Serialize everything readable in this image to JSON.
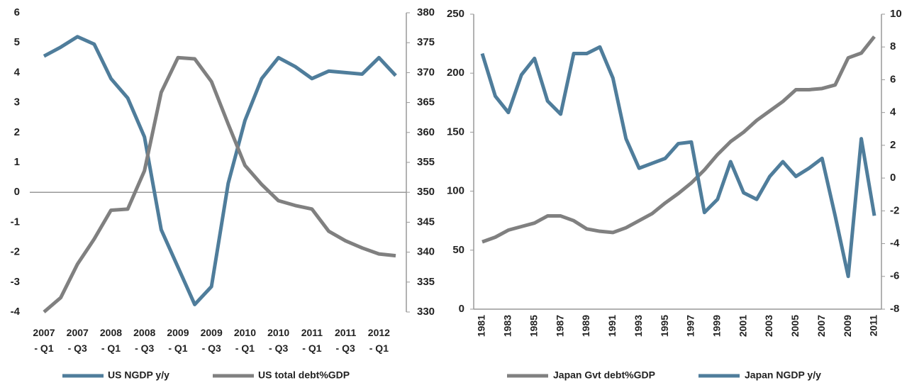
{
  "chart_data": [
    {
      "type": "line",
      "categories": [
        "2007 - Q1",
        null,
        "2007 - Q3",
        null,
        "2008 - Q1",
        null,
        "2008 - Q3",
        null,
        "2009 - Q1",
        null,
        "2009 - Q3",
        null,
        "2010 - Q1",
        null,
        "2010 - Q3",
        null,
        "2011 - Q1",
        null,
        "2011 - Q3",
        null,
        "2012 - Q1",
        null
      ],
      "series": [
        {
          "name": "US NGDP y/y",
          "color": "#4f7d9b",
          "axis": "y",
          "values": [
            4.55,
            4.85,
            5.2,
            4.95,
            3.8,
            3.15,
            1.85,
            -1.25,
            -2.5,
            -3.75,
            -3.15,
            0.3,
            2.4,
            3.8,
            4.5,
            4.2,
            3.8,
            4.05,
            4.0,
            3.95,
            4.5,
            3.9
          ]
        },
        {
          "name": "US total debt%GDP",
          "color": "#808080",
          "axis": "y2",
          "values": [
            330,
            332.4,
            338,
            342.2,
            347,
            347.2,
            353.6,
            366.7,
            372.5,
            372.3,
            368.5,
            361.4,
            354.5,
            351.3,
            348.6,
            347.8,
            347.2,
            343.5,
            341.9,
            340.7,
            339.7,
            339.4
          ]
        }
      ],
      "ylim": [
        -4,
        6
      ],
      "yticks": [
        -4,
        -3,
        -2,
        -1,
        0,
        1,
        2,
        3,
        4,
        5,
        6
      ],
      "y2lim": [
        330,
        380
      ],
      "y2ticks": [
        330,
        335,
        340,
        345,
        350,
        355,
        360,
        365,
        370,
        375,
        380
      ]
    },
    {
      "type": "line",
      "categories": [
        "1981",
        null,
        "1983",
        null,
        "1985",
        null,
        "1987",
        null,
        "1989",
        null,
        "1991",
        null,
        "1993",
        null,
        "1995",
        null,
        "1997",
        null,
        "1999",
        null,
        "2001",
        null,
        "2003",
        null,
        "2005",
        null,
        "2007",
        null,
        "2009",
        null,
        "2011"
      ],
      "series": [
        {
          "name": "Japan Gvt debt%GDP",
          "color": "#808080",
          "axis": "y",
          "values": [
            57,
            61,
            67,
            70,
            73,
            79,
            79,
            75,
            68,
            66,
            65,
            69,
            75,
            81,
            90,
            98,
            107,
            118,
            131,
            142,
            150,
            160,
            168,
            176,
            186,
            186,
            187,
            190,
            213,
            217,
            231
          ]
        },
        {
          "name": "Japan NGDP y/y",
          "color": "#4f7d9b",
          "axis": "y2",
          "values": [
            7.6,
            5.0,
            4.0,
            6.3,
            7.3,
            4.7,
            3.9,
            7.6,
            7.6,
            8.0,
            6.1,
            2.4,
            0.6,
            0.9,
            1.2,
            2.1,
            2.2,
            -2.1,
            -1.3,
            1.0,
            -0.9,
            -1.3,
            0.1,
            1.0,
            0.1,
            0.6,
            1.2,
            -2.3,
            -6.0,
            2.4,
            -2.3
          ]
        }
      ],
      "ylim": [
        0,
        250
      ],
      "yticks": [
        0,
        50,
        100,
        150,
        200,
        250
      ],
      "y2lim": [
        -8,
        10
      ],
      "y2ticks": [
        -8,
        -6,
        -4,
        -2,
        0,
        2,
        4,
        6,
        8,
        10
      ]
    }
  ]
}
